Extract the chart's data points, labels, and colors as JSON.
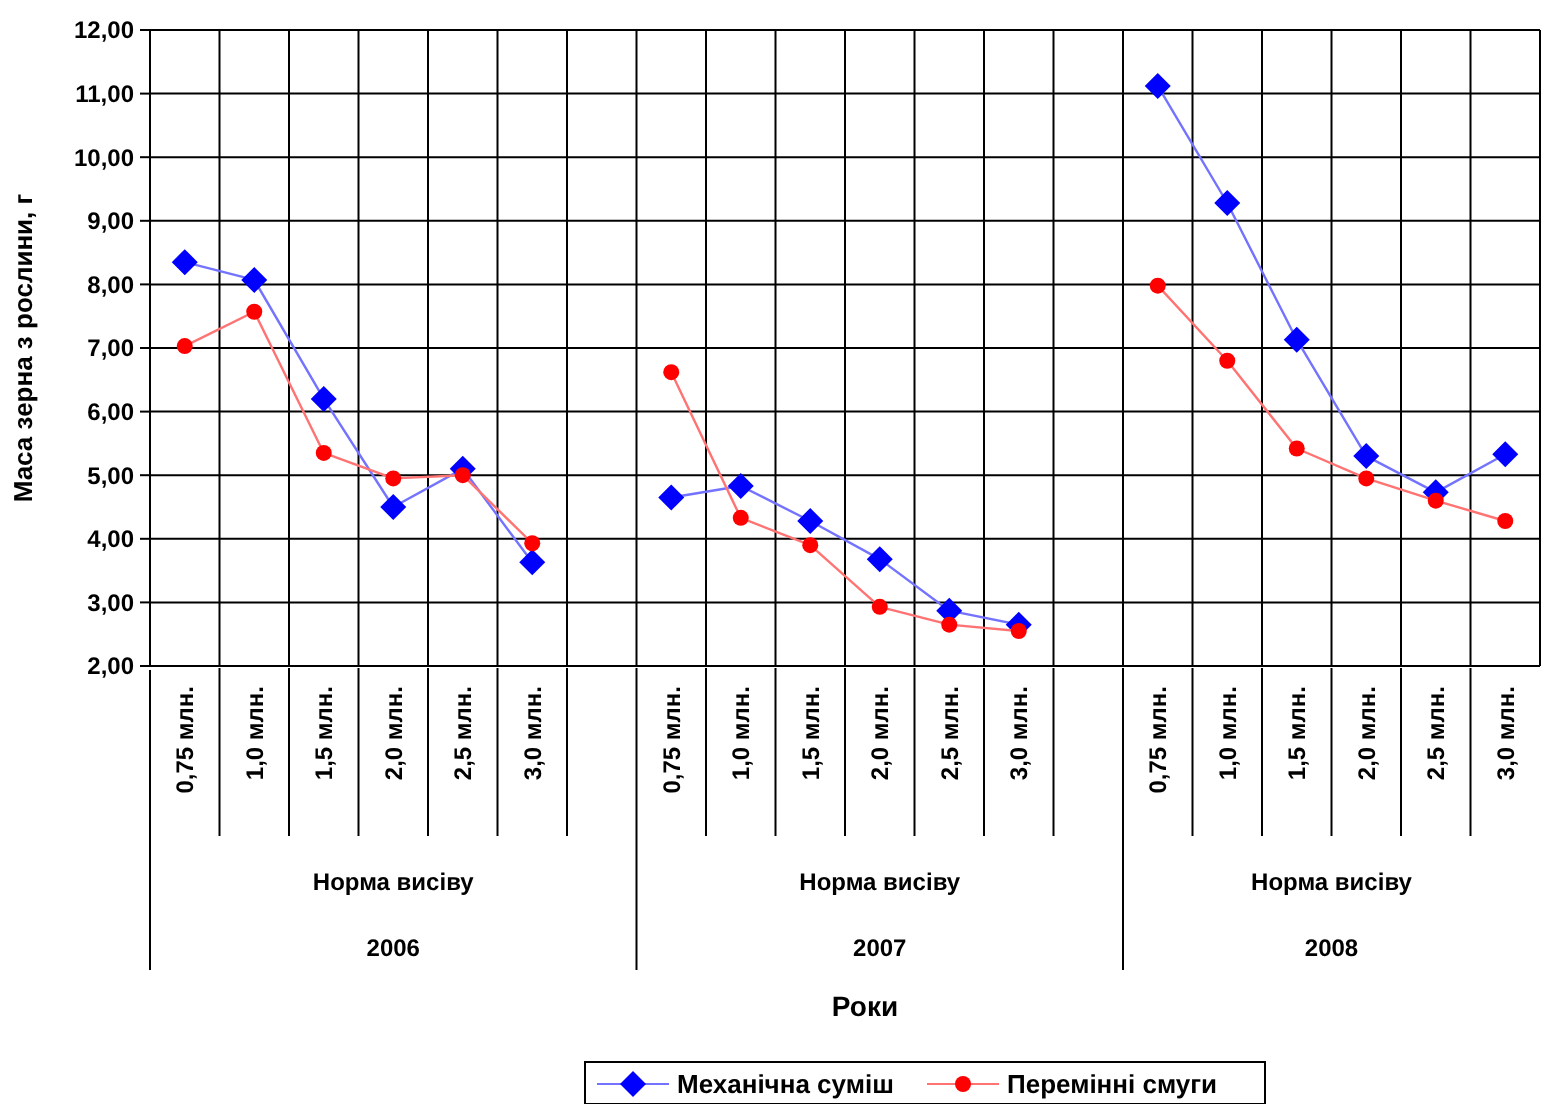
{
  "chart_data": {
    "type": "line",
    "ylabel": "Маса зерна з рослини, г",
    "categories": [
      "0,75 млн.",
      "1,0 млн.",
      "1,5 млн.",
      "2,0 млн.",
      "2,5 млн.",
      "3,0 млн.",
      null,
      "0,75 млн.",
      "1,0 млн.",
      "1,5 млн.",
      "2,0 млн.",
      "2,5 млн.",
      "3,0 млн.",
      null,
      "0,75 млн.",
      "1,0 млн.",
      "1,5 млн.",
      "2,0 млн.",
      "2,5 млн.",
      "3,0 млн."
    ],
    "series": [
      {
        "name": "Механічна суміш",
        "color": "#0000ff",
        "marker": "diamond",
        "values": [
          8.35,
          8.07,
          6.2,
          4.5,
          5.1,
          3.63,
          null,
          4.65,
          4.83,
          4.28,
          3.68,
          2.87,
          2.65,
          null,
          11.12,
          9.28,
          7.13,
          5.3,
          4.73,
          5.33
        ]
      },
      {
        "name": "Перемінні смуги",
        "color": "#ff0000",
        "marker": "circle",
        "values": [
          7.03,
          7.57,
          5.35,
          4.95,
          5.0,
          3.93,
          null,
          6.62,
          4.33,
          3.9,
          2.93,
          2.65,
          2.55,
          null,
          7.98,
          6.8,
          5.42,
          4.95,
          4.6,
          4.28
        ]
      }
    ],
    "annotations": [
      "Норма висіву",
      "2006",
      "Норма висіву",
      "2007",
      "Норма висіву",
      "2008",
      "Роки"
    ],
    "ylim": [
      2,
      12
    ],
    "yticks": [
      {
        "value": 2,
        "label": "2,00"
      },
      {
        "value": 3,
        "label": "3,00"
      },
      {
        "value": 4,
        "label": "4,00"
      },
      {
        "value": 5,
        "label": "5,00"
      },
      {
        "value": 6,
        "label": "6,00"
      },
      {
        "value": 7,
        "label": "7,00"
      },
      {
        "value": 8,
        "label": "8,00"
      },
      {
        "value": 9,
        "label": "9,00"
      },
      {
        "value": 10,
        "label": "10,00"
      },
      {
        "value": 11,
        "label": "11,00"
      },
      {
        "value": 12,
        "label": "12,00"
      }
    ],
    "grid": true,
    "legend": "bottom"
  }
}
